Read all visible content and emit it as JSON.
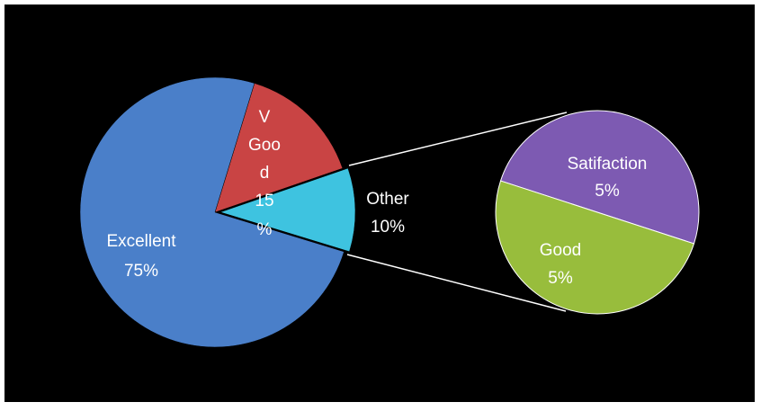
{
  "chart_data": {
    "type": "pie",
    "subtype": "pie-of-pie",
    "title": "",
    "main_pie": {
      "slices": [
        {
          "label": "Excellent",
          "value": 75,
          "value_label": "75%",
          "color": "#4a7fc9"
        },
        {
          "label": "V Good",
          "value": 15,
          "value_label": "15%",
          "color": "#c94444"
        },
        {
          "label": "Other",
          "value": 10,
          "value_label": "10%",
          "color": "#3ec3e0"
        }
      ]
    },
    "secondary_pie": {
      "slices": [
        {
          "label": "Satifaction",
          "value": 5,
          "value_label": "5%",
          "color": "#7d5ab2"
        },
        {
          "label": "Good",
          "value": 5,
          "value_label": "5%",
          "color": "#98bd3c"
        }
      ]
    },
    "label_lines": {
      "excellent": [
        "Excellent",
        "75%"
      ],
      "vgood": [
        "V",
        "Goo",
        "d",
        "15",
        "%"
      ],
      "other": [
        "Other",
        "10%"
      ],
      "satifaction": [
        "Satifaction",
        "5%"
      ],
      "good": [
        "Good",
        "5%"
      ]
    },
    "connector_color": "#ffffff",
    "background": "#000000"
  }
}
